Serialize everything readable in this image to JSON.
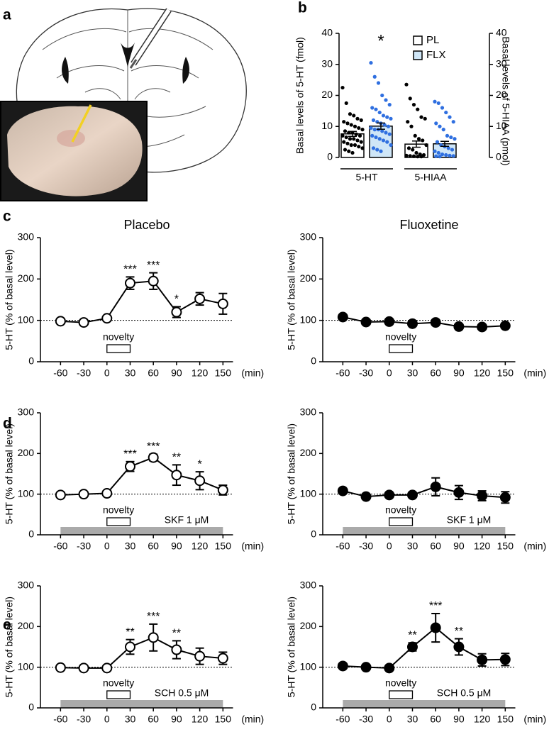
{
  "panel_labels": [
    "a",
    "b",
    "c",
    "d",
    "e"
  ],
  "chart_data": [
    {
      "type": "bar",
      "ylabel": "Basal levels of 5-HT (fmol)",
      "y2label": "Basal levels of 5-HIAA (pmol)",
      "categories": [
        "5-HT",
        "5-HIAA"
      ],
      "category_axis": [
        "y",
        "y2"
      ],
      "ylim": [
        0,
        40
      ],
      "yticks": [
        0,
        10,
        20,
        30,
        40
      ],
      "y2lim": [
        0,
        40
      ],
      "y2ticks": [
        0,
        10,
        20,
        30,
        40
      ],
      "series": [
        {
          "name": "PL",
          "color": "#ffffff",
          "dot_color": "#000000",
          "values": [
            7.6,
            4.3
          ],
          "errors": [
            0.8,
            1.0
          ],
          "significance": [
            null,
            null
          ],
          "points": [
            [
              22.5,
              17.5,
              14,
              13.5,
              12.5,
              12,
              11.5,
              11,
              10.5,
              10,
              9.5,
              9,
              8.5,
              8,
              8,
              7.5,
              7,
              7,
              6.5,
              6,
              6,
              5.5,
              5,
              5,
              4.5,
              4,
              4,
              3.5,
              3,
              2.5,
              2,
              1.5
            ],
            [
              23.5,
              19,
              17,
              15.5,
              13,
              12.5,
              11.5,
              10,
              7,
              6,
              5.5,
              4,
              3,
              2.5,
              1.5,
              1,
              0.8,
              0.6,
              0.5,
              0.4,
              0.3,
              0.3
            ]
          ]
        },
        {
          "name": "FLX",
          "color": "#cfe6f7",
          "dot_color": "#2f6fe0",
          "values": [
            10.1,
            4.4
          ],
          "errors": [
            1.0,
            0.8
          ],
          "significance": [
            "*",
            null
          ],
          "points": [
            [
              30.5,
              26,
              24,
              20,
              18.5,
              17,
              16,
              15.5,
              14.5,
              13.5,
              13,
              12.5,
              12,
              11.5,
              11,
              10.5,
              10,
              9.5,
              9,
              9,
              8.5,
              8,
              7.5,
              7,
              6.5,
              6,
              5.5,
              5,
              4,
              3,
              2.5,
              2
            ],
            [
              18,
              17.5,
              16,
              14.5,
              13,
              11.5,
              11,
              10,
              9,
              7,
              6.5,
              6,
              5,
              4,
              3.5,
              3,
              2.5,
              2,
              1.5,
              1,
              0.8,
              0.6,
              0.5,
              0.4,
              0.3
            ]
          ]
        }
      ]
    },
    {
      "type": "line",
      "title": "Placebo",
      "ylabel": "5-HT (% of basal level)",
      "xlabel": "(min)",
      "x": [
        -60,
        -30,
        0,
        30,
        60,
        90,
        120,
        150
      ],
      "xlim": [
        -86,
        163
      ],
      "xticks": [
        -60,
        -30,
        0,
        30,
        60,
        90,
        120,
        150
      ],
      "ylim": [
        0,
        300
      ],
      "yticks": [
        0,
        100,
        200,
        300
      ],
      "baseline": 100,
      "color": "#000000",
      "marker_fill": "#ffffff",
      "values": [
        98,
        95,
        105,
        190,
        195,
        120,
        152,
        140
      ],
      "errors": [
        3,
        3,
        5,
        15,
        20,
        13,
        15,
        25
      ],
      "significance": [
        null,
        null,
        null,
        "***",
        "***",
        "*",
        null,
        null
      ],
      "event": {
        "label": "novelty",
        "start": 0,
        "end": 30
      }
    },
    {
      "type": "line",
      "title": "Fluoxetine",
      "ylabel": "5-HT (% of basal level)",
      "xlabel": "(min)",
      "x": [
        -60,
        -30,
        0,
        30,
        60,
        90,
        120,
        150
      ],
      "xlim": [
        -86,
        163
      ],
      "xticks": [
        -60,
        -30,
        0,
        30,
        60,
        90,
        120,
        150
      ],
      "ylim": [
        0,
        300
      ],
      "yticks": [
        0,
        100,
        200,
        300
      ],
      "baseline": 100,
      "color": "#000000",
      "marker_fill": "#000000",
      "values": [
        108,
        96,
        97,
        92,
        95,
        85,
        84,
        87
      ],
      "errors": [
        5,
        4,
        4,
        3,
        3,
        3,
        3,
        3
      ],
      "significance": [
        null,
        null,
        null,
        null,
        null,
        null,
        null,
        null
      ],
      "event": {
        "label": "novelty",
        "start": 0,
        "end": 30
      }
    },
    {
      "type": "line",
      "ylabel": "5-HT (% of basal level)",
      "xlabel": "(min)",
      "x": [
        -60,
        -30,
        0,
        30,
        60,
        90,
        120,
        150
      ],
      "xlim": [
        -86,
        163
      ],
      "xticks": [
        -60,
        -30,
        0,
        30,
        60,
        90,
        120,
        150
      ],
      "ylim": [
        0,
        300
      ],
      "yticks": [
        0,
        100,
        200,
        300
      ],
      "baseline": 100,
      "color": "#000000",
      "marker_fill": "#ffffff",
      "values": [
        98,
        100,
        102,
        168,
        190,
        147,
        133,
        110
      ],
      "errors": [
        3,
        3,
        3,
        12,
        8,
        25,
        22,
        12
      ],
      "significance": [
        null,
        null,
        null,
        "***",
        "***",
        "**",
        "*",
        null
      ],
      "event": {
        "label": "novelty",
        "start": 0,
        "end": 30
      },
      "treatment": {
        "label": "SKF 1 μM",
        "start": -60,
        "end": 150,
        "color": "#aaaaaa"
      }
    },
    {
      "type": "line",
      "ylabel": "5-HT (% of basal level)",
      "xlabel": "(min)",
      "x": [
        -60,
        -30,
        0,
        30,
        60,
        90,
        120,
        150
      ],
      "xlim": [
        -86,
        163
      ],
      "xticks": [
        -60,
        -30,
        0,
        30,
        60,
        90,
        120,
        150
      ],
      "ylim": [
        0,
        300
      ],
      "yticks": [
        0,
        100,
        200,
        300
      ],
      "baseline": 100,
      "color": "#000000",
      "marker_fill": "#000000",
      "values": [
        108,
        94,
        98,
        98,
        118,
        104,
        96,
        92
      ],
      "errors": [
        4,
        3,
        3,
        3,
        22,
        17,
        12,
        14
      ],
      "significance": [
        null,
        null,
        null,
        null,
        null,
        null,
        null,
        null
      ],
      "event": {
        "label": "novelty",
        "start": 0,
        "end": 30
      },
      "treatment": {
        "label": "SKF 1 μM",
        "start": -60,
        "end": 150,
        "color": "#aaaaaa"
      }
    },
    {
      "type": "line",
      "ylabel": "5-HT (% of basal level)",
      "xlabel": "(min)",
      "x": [
        -60,
        -30,
        0,
        30,
        60,
        90,
        120,
        150
      ],
      "xlim": [
        -86,
        163
      ],
      "xticks": [
        -60,
        -30,
        0,
        30,
        60,
        90,
        120,
        150
      ],
      "ylim": [
        0,
        300
      ],
      "yticks": [
        0,
        100,
        200,
        300
      ],
      "baseline": 100,
      "color": "#000000",
      "marker_fill": "#ffffff",
      "values": [
        99,
        98,
        98,
        150,
        173,
        143,
        127,
        122
      ],
      "errors": [
        2,
        2,
        2,
        18,
        33,
        22,
        20,
        15
      ],
      "significance": [
        null,
        null,
        null,
        "**",
        "***",
        "**",
        null,
        null
      ],
      "event": {
        "label": "novelty",
        "start": 0,
        "end": 30
      },
      "treatment": {
        "label": "SCH 0.5 μM",
        "start": -60,
        "end": 150,
        "color": "#aaaaaa"
      }
    },
    {
      "type": "line",
      "ylabel": "5-HT (% of basal level)",
      "xlabel": "(min)",
      "x": [
        -60,
        -30,
        0,
        30,
        60,
        90,
        120,
        150
      ],
      "xlim": [
        -86,
        163
      ],
      "xticks": [
        -60,
        -30,
        0,
        30,
        60,
        90,
        120,
        150
      ],
      "ylim": [
        0,
        300
      ],
      "yticks": [
        0,
        100,
        200,
        300
      ],
      "baseline": 100,
      "color": "#000000",
      "marker_fill": "#000000",
      "values": [
        103,
        100,
        98,
        150,
        197,
        150,
        118,
        119
      ],
      "errors": [
        3,
        2,
        2,
        10,
        35,
        20,
        15,
        15
      ],
      "significance": [
        null,
        null,
        null,
        "**",
        "***",
        "**",
        null,
        null
      ],
      "event": {
        "label": "novelty",
        "start": 0,
        "end": 30
      },
      "treatment": {
        "label": "SCH 0.5 μM",
        "start": -60,
        "end": 150,
        "color": "#aaaaaa"
      }
    }
  ]
}
